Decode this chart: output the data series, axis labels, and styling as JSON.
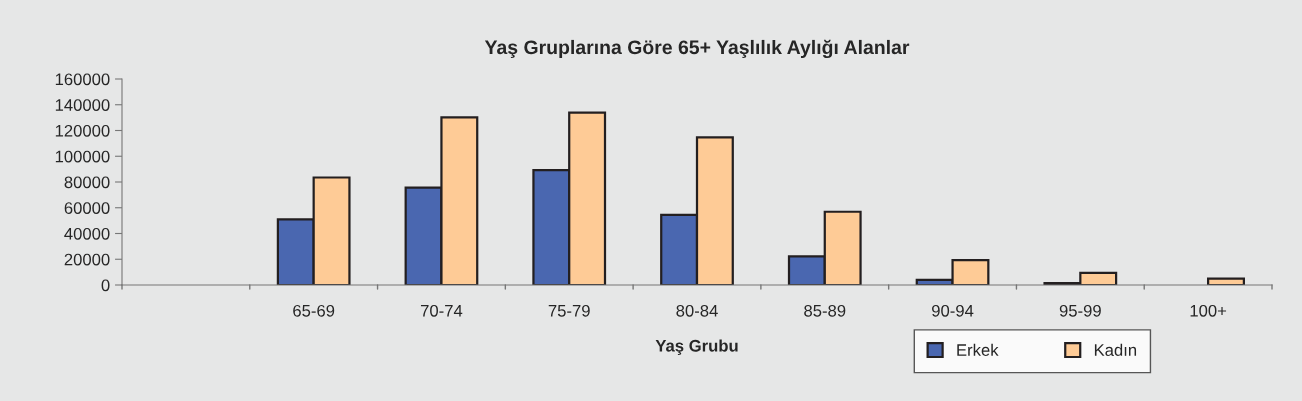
{
  "chart_data": {
    "type": "bar",
    "title": "Yaş Gruplarına Göre 65+ Yaşlılık Aylığı Alanlar",
    "xlabel": "Yaş Grubu",
    "categories": [
      null,
      "65-69",
      "70-74",
      "75-79",
      "80-84",
      "85-89",
      "90-94",
      "95-99",
      "100+"
    ],
    "series": [
      {
        "name": "Erkek",
        "color": "#4a67b0",
        "values": [
          null,
          51000,
          75600,
          89300,
          54400,
          22300,
          3900,
          1500,
          null
        ]
      },
      {
        "name": "Kadın",
        "color": "#fecb96",
        "values": [
          null,
          83500,
          130200,
          133800,
          114700,
          56900,
          19400,
          9500,
          4900
        ]
      }
    ],
    "ylim": [
      0,
      160000
    ],
    "yticks": [
      0,
      20000,
      40000,
      60000,
      80000,
      100000,
      120000,
      140000,
      160000
    ],
    "grid": false,
    "legend": "bottom right"
  }
}
